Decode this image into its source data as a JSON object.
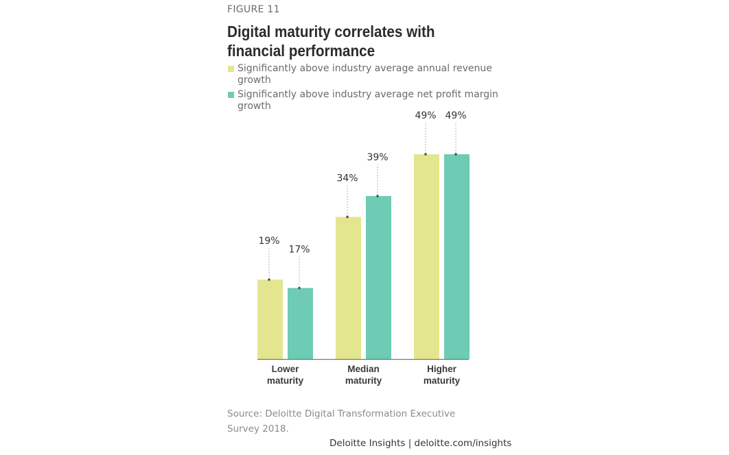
{
  "figure_label": "FIGURE 11",
  "title": "Digital maturity correlates with financial performance",
  "source": "Source: Deloitte Digital Transformation Executive Survey 2018.",
  "credit": "Deloitte Insights | deloitte.com/insights",
  "colors": {
    "revenue": "#e3e68e",
    "profit": "#6ecbb4",
    "axis": "#777777",
    "leader": "#999999",
    "text": "#333333"
  },
  "chart_data": {
    "type": "bar",
    "categories": [
      "Lower maturity",
      "Median maturity",
      "Higher maturity"
    ],
    "category_lines": [
      [
        "Lower",
        "maturity"
      ],
      [
        "Median",
        "maturity"
      ],
      [
        "Higher",
        "maturity"
      ]
    ],
    "series": [
      {
        "name": "Significantly above industry average annual revenue growth",
        "values": [
          19,
          34,
          49
        ],
        "labels": [
          "19%",
          "34%",
          "49%"
        ],
        "color": "#e3e68e"
      },
      {
        "name": "Significantly above industry average net profit margin growth",
        "values": [
          17,
          39,
          49
        ],
        "labels": [
          "17%",
          "39%",
          "49%"
        ],
        "color": "#6ecbb4"
      }
    ],
    "ylim": [
      0,
      60
    ],
    "grid": false,
    "legend": "top-left"
  }
}
